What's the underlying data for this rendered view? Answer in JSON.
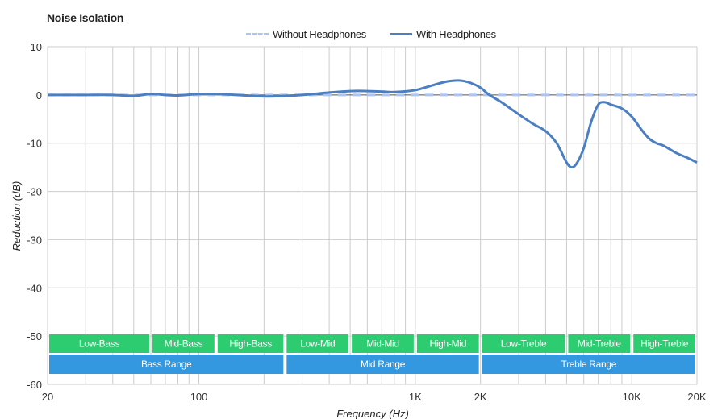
{
  "chart_data": {
    "type": "line",
    "title": "Noise Isolation",
    "xlabel": "Frequency (Hz)",
    "ylabel": "Reduction (dB)",
    "x_scale": "log",
    "xlim": [
      20,
      20000
    ],
    "ylim": [
      -60,
      10
    ],
    "x_ticks": [
      {
        "value": 20,
        "label": "20"
      },
      {
        "value": 100,
        "label": "100"
      },
      {
        "value": 1000,
        "label": "1K"
      },
      {
        "value": 2000,
        "label": "2K"
      },
      {
        "value": 10000,
        "label": "10K"
      },
      {
        "value": 20000,
        "label": "20K"
      }
    ],
    "y_ticks": [
      10,
      0,
      -10,
      -20,
      -30,
      -40,
      -50,
      -60
    ],
    "grid": true,
    "legend_position": "top-center",
    "series": [
      {
        "name": "Without Headphones",
        "style": "dashed",
        "color": "#a9c4f5",
        "x": [
          20,
          20000
        ],
        "y": [
          0,
          0
        ]
      },
      {
        "name": "With Headphones",
        "style": "solid",
        "color": "#4a7fc1",
        "x": [
          20,
          30,
          40,
          50,
          60,
          70,
          80,
          100,
          120,
          150,
          200,
          250,
          300,
          400,
          500,
          600,
          700,
          800,
          1000,
          1200,
          1400,
          1600,
          1800,
          2000,
          2200,
          2500,
          3000,
          3500,
          4000,
          4500,
          5000,
          5300,
          5600,
          6000,
          6500,
          7000,
          7500,
          8000,
          9000,
          10000,
          11000,
          12000,
          13000,
          14000,
          16000,
          18000,
          20000
        ],
        "y": [
          0,
          0,
          0,
          -0.2,
          0.2,
          0,
          -0.1,
          0.2,
          0.2,
          0,
          -0.3,
          -0.2,
          0,
          0.5,
          0.8,
          0.8,
          0.7,
          0.6,
          1.0,
          2.0,
          2.8,
          3.0,
          2.5,
          1.5,
          0,
          -1.5,
          -4,
          -6,
          -7.5,
          -10,
          -14,
          -15,
          -14,
          -11,
          -5.5,
          -2,
          -1.5,
          -2,
          -2.8,
          -4.5,
          -7,
          -9,
          -10,
          -10.5,
          -12,
          -13,
          -14
        ]
      }
    ],
    "bands": [
      {
        "label": "Low-Bass",
        "from": 20,
        "to": 60,
        "row": 1,
        "color": "#2ecc71"
      },
      {
        "label": "Mid-Bass",
        "from": 60,
        "to": 120,
        "row": 1,
        "color": "#2ecc71"
      },
      {
        "label": "High-Bass",
        "from": 120,
        "to": 250,
        "row": 1,
        "color": "#2ecc71"
      },
      {
        "label": "Low-Mid",
        "from": 250,
        "to": 500,
        "row": 1,
        "color": "#2ecc71"
      },
      {
        "label": "Mid-Mid",
        "from": 500,
        "to": 1000,
        "row": 1,
        "color": "#2ecc71"
      },
      {
        "label": "High-Mid",
        "from": 1000,
        "to": 2000,
        "row": 1,
        "color": "#2ecc71"
      },
      {
        "label": "Low-Treble",
        "from": 2000,
        "to": 5000,
        "row": 1,
        "color": "#2ecc71"
      },
      {
        "label": "Mid-Treble",
        "from": 5000,
        "to": 10000,
        "row": 1,
        "color": "#2ecc71"
      },
      {
        "label": "High-Treble",
        "from": 10000,
        "to": 20000,
        "row": 1,
        "color": "#2ecc71"
      },
      {
        "label": "Bass Range",
        "from": 20,
        "to": 250,
        "row": 2,
        "color": "#3498e0"
      },
      {
        "label": "Mid Range",
        "from": 250,
        "to": 2000,
        "row": 2,
        "color": "#3498e0"
      },
      {
        "label": "Treble Range",
        "from": 2000,
        "to": 20000,
        "row": 2,
        "color": "#3498e0"
      }
    ]
  }
}
